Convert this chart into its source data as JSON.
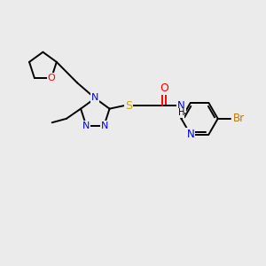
{
  "background_color": "#ebebeb",
  "bond_color": "#000000",
  "atom_colors": {
    "N": "#0000ee",
    "O": "#ff0000",
    "S": "#ccaa00",
    "Br": "#bb7700",
    "H": "#000000",
    "C": "#000000"
  },
  "bg": "#ebebeb"
}
